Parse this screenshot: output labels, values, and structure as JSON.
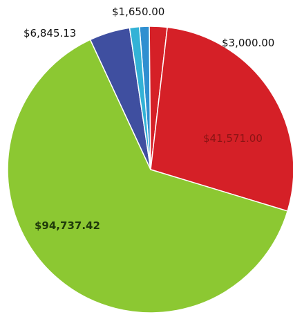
{
  "chart_data": {
    "type": "pie",
    "title": "",
    "slices": [
      {
        "label": "$1,650.00",
        "value": 1650.0,
        "color": "#2f8fd0"
      },
      {
        "label": "$3,000.00",
        "value": 3000.0,
        "color": "#d52027"
      },
      {
        "label": "$41,571.00",
        "value": 41571.0,
        "color": "#d52027"
      },
      {
        "label": "$94,737.42",
        "value": 94737.42,
        "color": "#8cc832"
      },
      {
        "label": "$6,845.13",
        "value": 6845.13,
        "color": "#3f4fa0"
      },
      {
        "label": "",
        "value": 1650.0,
        "color": "#33b2d6"
      }
    ],
    "legend": "none"
  }
}
